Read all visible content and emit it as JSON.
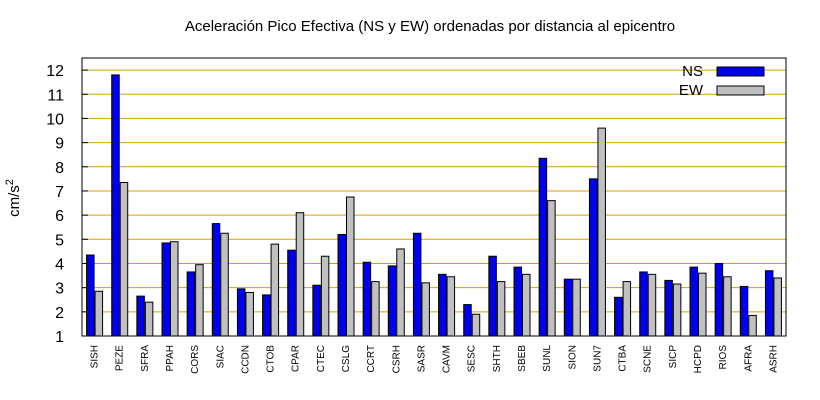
{
  "chart_data": {
    "type": "bar",
    "title": "Aceleración Pico Efectiva (NS y EW) ordenadas por distancia al epicentro",
    "xlabel": "",
    "ylabel": "cm/s",
    "ylabel_superscript": "2",
    "ylim": [
      1,
      12.5
    ],
    "yticks": [
      1,
      2,
      3,
      4,
      5,
      6,
      7,
      8,
      9,
      10,
      11,
      12
    ],
    "grid": "horizontal",
    "legend_position": "top-right",
    "categories": [
      "SISH",
      "PEZE",
      "SFRA",
      "PPAH",
      "CORS",
      "SIAC",
      "CCDN",
      "CTOB",
      "CPAR",
      "CTEC",
      "CSLG",
      "CCRT",
      "CSRH",
      "SASR",
      "CAVM",
      "SESC",
      "SHTH",
      "SBEB",
      "SUNL",
      "SION",
      "SUN7",
      "CTBA",
      "SCNE",
      "SICP",
      "HCPD",
      "RIOS",
      "AFRA",
      "ASRH"
    ],
    "series": [
      {
        "name": "NS",
        "color": "#0000ee",
        "values": [
          4.35,
          11.8,
          2.65,
          4.85,
          3.65,
          5.65,
          2.95,
          2.7,
          4.55,
          3.1,
          5.2,
          4.05,
          3.9,
          5.25,
          3.55,
          2.3,
          4.3,
          3.85,
          8.35,
          3.35,
          7.5,
          2.6,
          3.65,
          3.3,
          3.85,
          4.0,
          3.05,
          3.7
        ]
      },
      {
        "name": "EW",
        "color": "#c0c0c0",
        "values": [
          2.85,
          7.35,
          2.4,
          4.9,
          3.95,
          5.25,
          2.8,
          4.8,
          6.1,
          4.3,
          6.75,
          3.25,
          4.6,
          3.2,
          3.45,
          1.9,
          3.25,
          3.55,
          6.6,
          3.35,
          9.6,
          3.25,
          3.55,
          3.15,
          3.6,
          3.45,
          1.85,
          3.4
        ]
      }
    ],
    "colors": {
      "grid": "#d8a000",
      "axis": "#000000"
    }
  }
}
